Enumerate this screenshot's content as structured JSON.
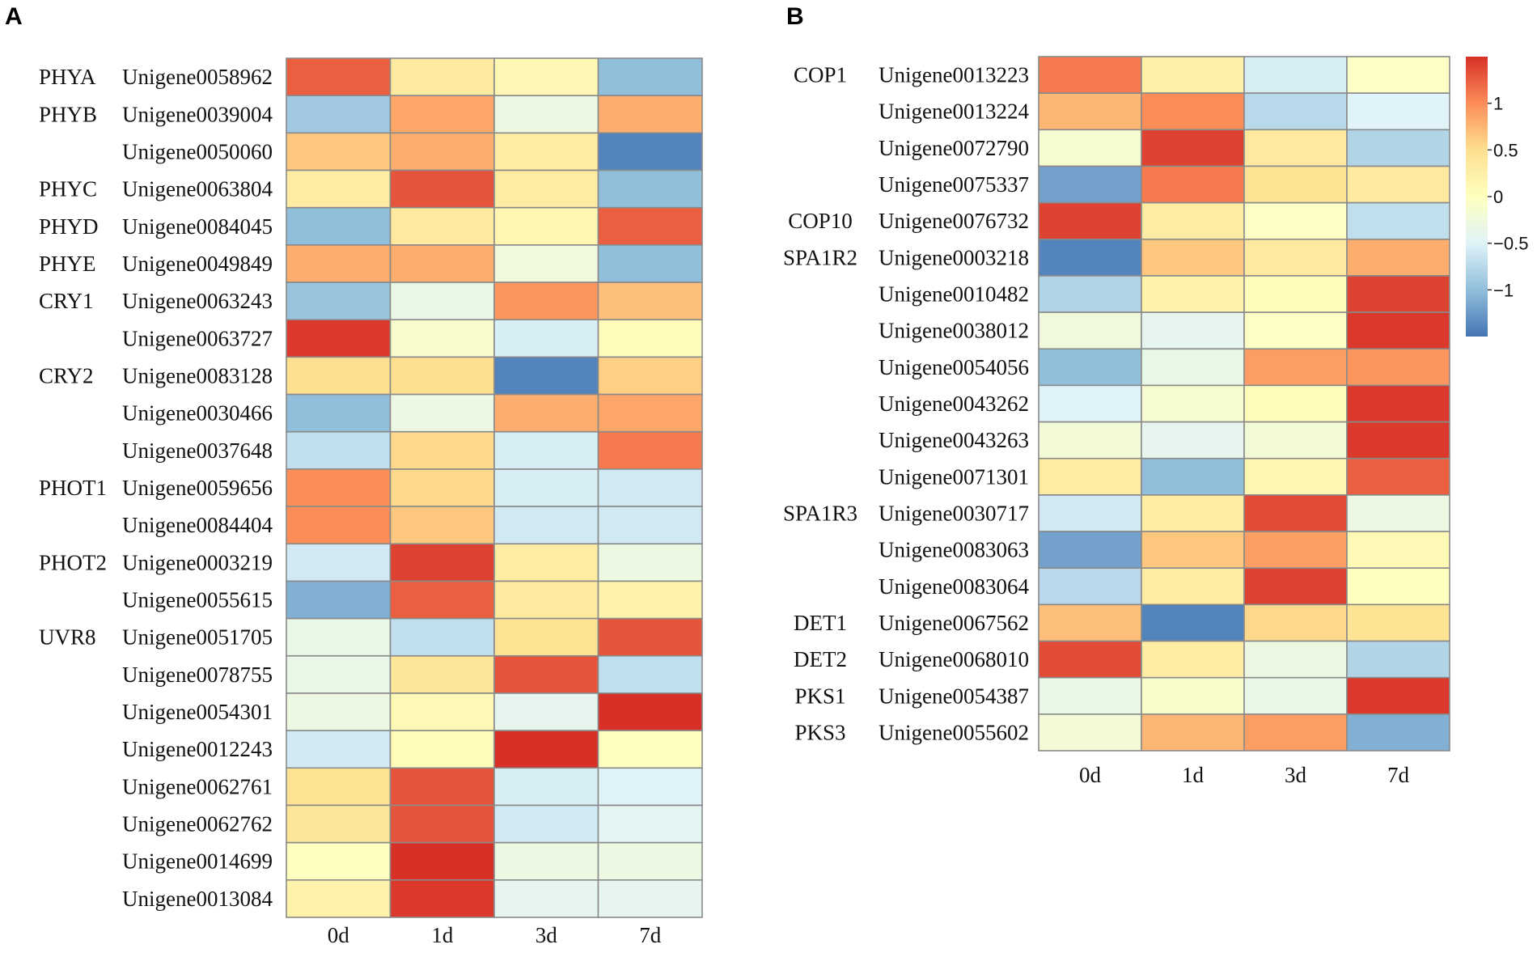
{
  "chart_data": [
    {
      "panel": "A",
      "type": "heatmap",
      "columns": [
        "0d",
        "1d",
        "3d",
        "7d"
      ],
      "rows": [
        {
          "group": "PHYA",
          "gene": "Unigene0058962",
          "values": [
            1.25,
            0.35,
            0.12,
            -1.0
          ]
        },
        {
          "group": "PHYB",
          "gene": "Unigene0039004",
          "values": [
            -0.9,
            0.85,
            -0.3,
            0.8
          ]
        },
        {
          "group": "",
          "gene": "Unigene0050060",
          "values": [
            0.65,
            0.8,
            0.3,
            -1.4
          ]
        },
        {
          "group": "PHYC",
          "gene": "Unigene0063804",
          "values": [
            0.3,
            1.3,
            0.3,
            -1.0
          ]
        },
        {
          "group": "PHYD",
          "gene": "Unigene0084045",
          "values": [
            -1.0,
            0.35,
            0.15,
            1.25
          ]
        },
        {
          "group": "PHYE",
          "gene": "Unigene0049849",
          "values": [
            0.8,
            0.8,
            -0.25,
            -1.0
          ]
        },
        {
          "group": "CRY1",
          "gene": "Unigene0063243",
          "values": [
            -0.95,
            -0.35,
            0.95,
            0.7
          ]
        },
        {
          "group": "",
          "gene": "Unigene0063727",
          "values": [
            1.45,
            -0.12,
            -0.55,
            0.05
          ]
        },
        {
          "group": "CRY2",
          "gene": "Unigene0083128",
          "values": [
            0.5,
            0.5,
            -1.4,
            0.6
          ]
        },
        {
          "group": "",
          "gene": "Unigene0030466",
          "values": [
            -1.0,
            -0.3,
            0.8,
            0.85
          ]
        },
        {
          "group": "",
          "gene": "Unigene0037648",
          "values": [
            -0.7,
            0.55,
            -0.55,
            1.1
          ]
        },
        {
          "group": "PHOT1",
          "gene": "Unigene0059656",
          "values": [
            1.0,
            0.55,
            -0.55,
            -0.6
          ]
        },
        {
          "group": "",
          "gene": "Unigene0084404",
          "values": [
            1.0,
            0.65,
            -0.6,
            -0.6
          ]
        },
        {
          "group": "PHOT2",
          "gene": "Unigene0003219",
          "values": [
            -0.6,
            1.4,
            0.3,
            -0.3
          ]
        },
        {
          "group": "",
          "gene": "Unigene0055615",
          "values": [
            -1.1,
            1.25,
            0.35,
            0.2
          ]
        },
        {
          "group": "UVR8",
          "gene": "Unigene0051705",
          "values": [
            -0.35,
            -0.7,
            0.45,
            1.3
          ]
        },
        {
          "group": "",
          "gene": "Unigene0078755",
          "values": [
            -0.35,
            0.4,
            1.3,
            -0.7
          ]
        },
        {
          "group": "",
          "gene": "Unigene0054301",
          "values": [
            -0.3,
            0.1,
            -0.4,
            1.5
          ]
        },
        {
          "group": "",
          "gene": "Unigene0012243",
          "values": [
            -0.6,
            0.05,
            1.5,
            0.0
          ]
        },
        {
          "group": "",
          "gene": "Unigene0062761",
          "values": [
            0.45,
            1.3,
            -0.55,
            -0.5
          ]
        },
        {
          "group": "",
          "gene": "Unigene0062762",
          "values": [
            0.4,
            1.3,
            -0.6,
            -0.45
          ]
        },
        {
          "group": "",
          "gene": "Unigene0014699",
          "values": [
            0.0,
            1.5,
            -0.3,
            -0.3
          ]
        },
        {
          "group": "",
          "gene": "Unigene0013084",
          "values": [
            0.2,
            1.45,
            -0.4,
            -0.4
          ]
        }
      ]
    },
    {
      "panel": "B",
      "type": "heatmap",
      "columns": [
        "0d",
        "1d",
        "3d",
        "7d"
      ],
      "colorbar": {
        "ticks": [
          1,
          0.5,
          0,
          -0.5,
          -1
        ],
        "range": [
          -1.5,
          1.5
        ]
      },
      "rows": [
        {
          "group": "COP1",
          "gene": "Unigene0013223",
          "values": [
            1.1,
            0.25,
            -0.55,
            -0.05
          ]
        },
        {
          "group": "",
          "gene": "Unigene0013224",
          "values": [
            0.75,
            1.0,
            -0.75,
            -0.5
          ]
        },
        {
          "group": "",
          "gene": "Unigene0072790",
          "values": [
            -0.15,
            1.4,
            0.35,
            -0.8
          ]
        },
        {
          "group": "",
          "gene": "Unigene0075337",
          "values": [
            -1.2,
            1.1,
            0.45,
            0.35
          ]
        },
        {
          "group": "COP10",
          "gene": "Unigene0076732",
          "values": [
            1.4,
            0.3,
            -0.05,
            -0.7
          ]
        },
        {
          "group": "SPA1R2",
          "gene": "Unigene0003218",
          "values": [
            -1.4,
            0.65,
            0.35,
            0.8
          ]
        },
        {
          "group": "",
          "gene": "Unigene0010482",
          "values": [
            -0.8,
            0.2,
            0.05,
            1.4
          ]
        },
        {
          "group": "",
          "gene": "Unigene0038012",
          "values": [
            -0.25,
            -0.4,
            -0.05,
            1.45
          ]
        },
        {
          "group": "",
          "gene": "Unigene0054056",
          "values": [
            -1.0,
            -0.35,
            0.9,
            0.95
          ]
        },
        {
          "group": "",
          "gene": "Unigene0043262",
          "values": [
            -0.5,
            -0.15,
            0.05,
            1.45
          ]
        },
        {
          "group": "",
          "gene": "Unigene0043263",
          "values": [
            -0.2,
            -0.4,
            -0.2,
            1.45
          ]
        },
        {
          "group": "",
          "gene": "Unigene0071301",
          "values": [
            0.3,
            -1.0,
            0.15,
            1.25
          ]
        },
        {
          "group": "SPA1R3",
          "gene": "Unigene0030717",
          "values": [
            -0.6,
            0.3,
            1.35,
            -0.3
          ]
        },
        {
          "group": "",
          "gene": "Unigene0083063",
          "values": [
            -1.2,
            0.65,
            0.9,
            0.1
          ]
        },
        {
          "group": "",
          "gene": "Unigene0083064",
          "values": [
            -0.75,
            0.3,
            1.4,
            0.0
          ]
        },
        {
          "group": "DET1",
          "gene": "Unigene0067562",
          "values": [
            0.7,
            -1.4,
            0.55,
            0.45
          ]
        },
        {
          "group": "DET2",
          "gene": "Unigene0068010",
          "values": [
            1.35,
            0.3,
            -0.3,
            -0.8
          ]
        },
        {
          "group": "PKS1",
          "gene": "Unigene0054387",
          "values": [
            -0.35,
            -0.1,
            -0.35,
            1.45
          ]
        },
        {
          "group": "PKS3",
          "gene": "Unigene0055602",
          "values": [
            -0.2,
            0.75,
            0.9,
            -1.1
          ]
        }
      ]
    }
  ],
  "panel_labels": {
    "a": "A",
    "b": "B"
  },
  "colors": {
    "scale": [
      "#4575b4",
      "#91bfdb",
      "#e0f3f8",
      "#ffffbf",
      "#fee090",
      "#fc8d59",
      "#d73027"
    ],
    "grid": "#8a8a8a"
  }
}
